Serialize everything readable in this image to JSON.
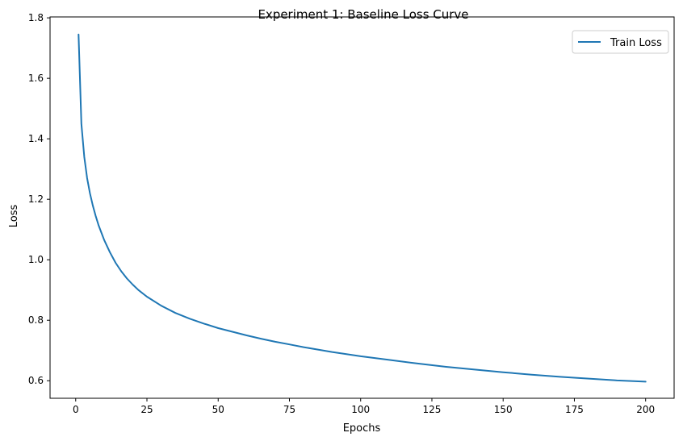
{
  "chart_data": {
    "type": "line",
    "title": "Experiment 1: Baseline Loss Curve",
    "xlabel": "Epochs",
    "ylabel": "Loss",
    "xlim": [
      -9,
      210
    ],
    "ylim": [
      0.542,
      1.803
    ],
    "xticks": [
      0,
      25,
      50,
      75,
      100,
      125,
      150,
      175,
      200
    ],
    "yticks": [
      0.6,
      0.8,
      1.0,
      1.2,
      1.4,
      1.6,
      1.8
    ],
    "xtick_labels": [
      "0",
      "25",
      "50",
      "75",
      "100",
      "125",
      "150",
      "175",
      "200"
    ],
    "ytick_labels": [
      "0.6",
      "0.8",
      "1.0",
      "1.2",
      "1.4",
      "1.6",
      "1.8"
    ],
    "grid": false,
    "legend_position": "top-right",
    "series": [
      {
        "name": "Train Loss",
        "color": "#1f77b4",
        "x": [
          1,
          2,
          3,
          4,
          5,
          6,
          7,
          8,
          9,
          10,
          12,
          14,
          16,
          18,
          20,
          22,
          25,
          30,
          35,
          40,
          45,
          50,
          55,
          60,
          65,
          70,
          75,
          80,
          85,
          90,
          95,
          100,
          110,
          120,
          130,
          140,
          150,
          160,
          170,
          180,
          190,
          200
        ],
        "y": [
          1.745,
          1.45,
          1.34,
          1.27,
          1.22,
          1.18,
          1.145,
          1.115,
          1.09,
          1.065,
          1.025,
          0.99,
          0.962,
          0.938,
          0.918,
          0.9,
          0.878,
          0.848,
          0.824,
          0.805,
          0.789,
          0.774,
          0.762,
          0.75,
          0.739,
          0.729,
          0.72,
          0.711,
          0.703,
          0.695,
          0.688,
          0.681,
          0.669,
          0.657,
          0.646,
          0.637,
          0.628,
          0.62,
          0.613,
          0.607,
          0.601,
          0.597
        ]
      }
    ]
  }
}
